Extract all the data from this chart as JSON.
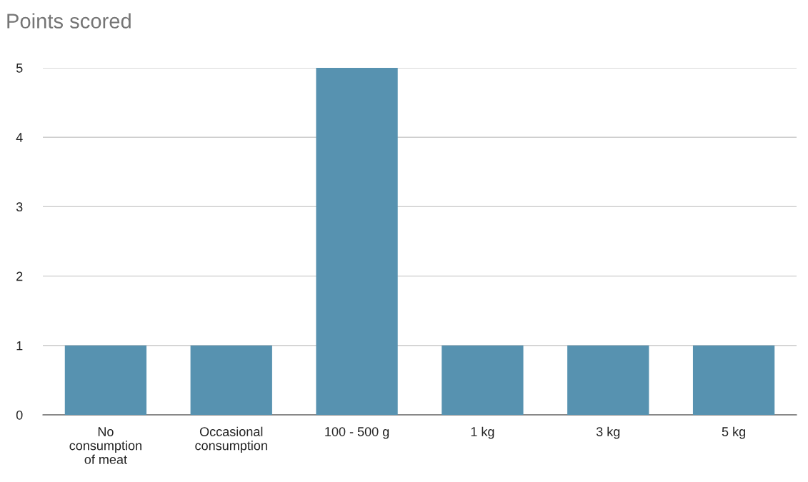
{
  "chart_data": {
    "type": "bar",
    "title": "Points scored",
    "categories": [
      "No\nconsumption\nof meat",
      "Occasional\nconsumption",
      "100 - 500 g",
      "1 kg",
      "3 kg",
      "5 kg"
    ],
    "values": [
      1,
      1,
      5,
      1,
      1,
      1
    ],
    "color": "#5792b0",
    "ylim": [
      0,
      5
    ],
    "yticks": [
      0,
      1,
      2,
      3,
      4,
      5
    ],
    "grid": "y",
    "legend": false
  }
}
